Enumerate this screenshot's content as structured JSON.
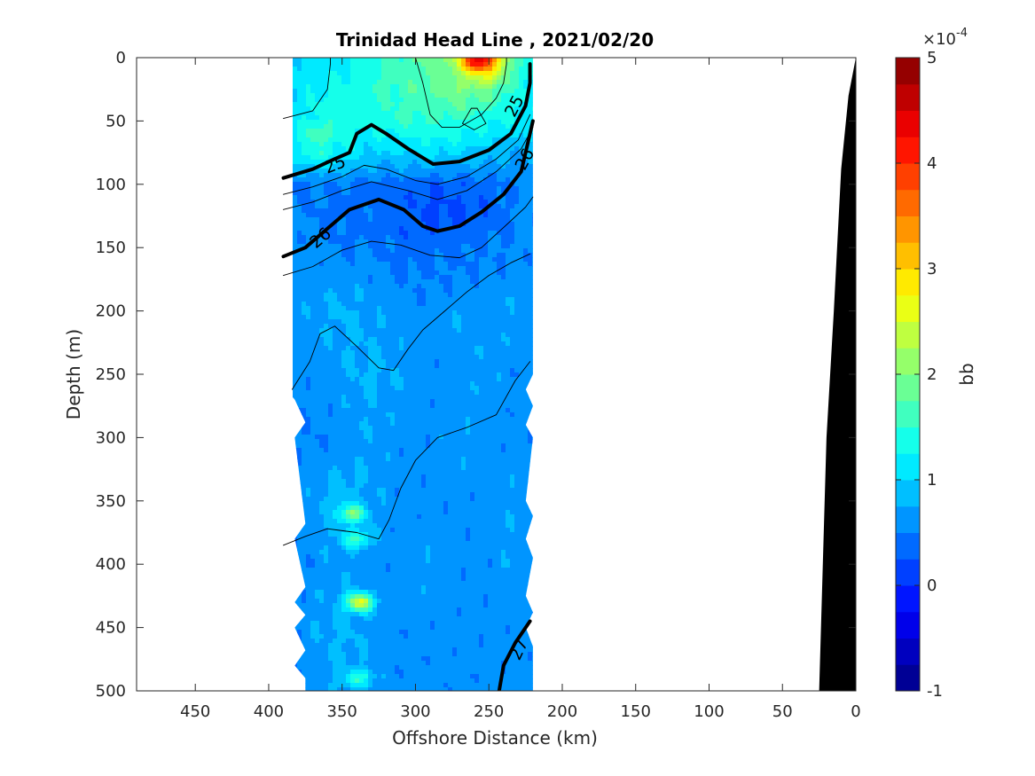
{
  "chart_data": {
    "type": "heatmap",
    "title": "Trinidad Head Line , 2021/02/20",
    "xlabel": "Offshore Distance (km)",
    "ylabel": "Depth (m)",
    "xlim": [
      490,
      0
    ],
    "ylim": [
      500,
      0
    ],
    "x_direction": "reversed",
    "y_direction": "depth-down",
    "x_ticks": [
      450,
      400,
      350,
      300,
      250,
      200,
      150,
      100,
      50,
      0
    ],
    "y_ticks": [
      0,
      50,
      100,
      150,
      200,
      250,
      300,
      350,
      400,
      450,
      500
    ],
    "colorbar": {
      "label": "bb",
      "exponent_label": "×10",
      "exponent_power": "-4",
      "range": [
        -1,
        5
      ],
      "ticks": [
        -1,
        0,
        1,
        2,
        3,
        4,
        5
      ],
      "colormap": "jet"
    },
    "data_extent": {
      "x_range_km": [
        390,
        220
      ],
      "depth_range_m": [
        0,
        500
      ]
    },
    "field_bb_e4": {
      "x": [
        390,
        370,
        350,
        330,
        310,
        290,
        270,
        250,
        235,
        220
      ],
      "depth": [
        0,
        25,
        50,
        75,
        100,
        125,
        150,
        200,
        250,
        300,
        350,
        400,
        450,
        500
      ],
      "values": [
        [
          1.0,
          1.1,
          1.2,
          1.4,
          1.6,
          1.8,
          2.3,
          3.6,
          1.9,
          1.3
        ],
        [
          1.0,
          1.2,
          1.3,
          1.5,
          1.6,
          1.8,
          2.0,
          1.9,
          1.5,
          1.2
        ],
        [
          1.1,
          1.3,
          1.4,
          1.3,
          1.5,
          1.5,
          1.5,
          1.3,
          1.2,
          1.1
        ],
        [
          0.9,
          1.5,
          1.2,
          1.0,
          1.0,
          1.1,
          1.0,
          0.9,
          0.8,
          0.8
        ],
        [
          0.4,
          0.5,
          0.5,
          0.4,
          0.4,
          0.3,
          0.3,
          0.4,
          0.5,
          0.6
        ],
        [
          0.6,
          0.5,
          0.4,
          0.4,
          0.3,
          0.2,
          0.2,
          0.3,
          0.5,
          0.6
        ],
        [
          0.6,
          0.6,
          0.5,
          0.5,
          0.4,
          0.4,
          0.4,
          0.5,
          0.5,
          0.6
        ],
        [
          0.6,
          0.7,
          0.8,
          0.7,
          0.6,
          0.6,
          0.7,
          0.6,
          0.7,
          0.6
        ],
        [
          0.6,
          0.6,
          0.7,
          0.8,
          0.7,
          0.6,
          0.6,
          0.7,
          0.6,
          0.6
        ],
        [
          0.6,
          0.5,
          0.6,
          0.7,
          0.6,
          0.6,
          0.7,
          0.6,
          0.6,
          0.6
        ],
        [
          0.5,
          0.7,
          0.9,
          0.7,
          0.6,
          0.6,
          0.6,
          0.6,
          0.7,
          0.6
        ],
        [
          0.4,
          0.6,
          0.7,
          0.6,
          0.6,
          0.7,
          0.6,
          0.6,
          0.7,
          0.6
        ],
        [
          0.5,
          0.7,
          0.8,
          0.7,
          0.6,
          0.6,
          0.6,
          0.6,
          0.6,
          0.6
        ],
        [
          0.4,
          0.6,
          0.8,
          0.6,
          0.6,
          0.6,
          0.6,
          0.6,
          0.6,
          0.6
        ]
      ]
    },
    "hotspots": [
      {
        "x": 258,
        "depth": 3,
        "value": 4.5
      },
      {
        "x": 338,
        "depth": 430,
        "value": 2.6
      },
      {
        "x": 343,
        "depth": 360,
        "value": 2.0
      },
      {
        "x": 340,
        "depth": 380,
        "value": 1.6
      },
      {
        "x": 338,
        "depth": 490,
        "value": 1.5
      },
      {
        "x": 365,
        "depth": 60,
        "value": 1.7
      }
    ],
    "contours": [
      {
        "level": 25,
        "bold": true,
        "label": "25",
        "points": [
          [
            390,
            95
          ],
          [
            370,
            88
          ],
          [
            355,
            80
          ],
          [
            345,
            75
          ],
          [
            340,
            60
          ],
          [
            330,
            53
          ],
          [
            320,
            60
          ],
          [
            305,
            72
          ],
          [
            288,
            84
          ],
          [
            270,
            82
          ],
          [
            250,
            73
          ],
          [
            235,
            60
          ],
          [
            225,
            38
          ],
          [
            222,
            20
          ],
          [
            222,
            5
          ]
        ]
      },
      {
        "level": 26,
        "bold": true,
        "label": "26",
        "points": [
          [
            390,
            157
          ],
          [
            375,
            150
          ],
          [
            360,
            135
          ],
          [
            345,
            120
          ],
          [
            325,
            112
          ],
          [
            308,
            120
          ],
          [
            295,
            133
          ],
          [
            285,
            137
          ],
          [
            270,
            133
          ],
          [
            255,
            122
          ],
          [
            240,
            108
          ],
          [
            228,
            90
          ],
          [
            220,
            50
          ]
        ]
      },
      {
        "level": 27,
        "bold": true,
        "label": "27",
        "points": [
          [
            243,
            500
          ],
          [
            240,
            480
          ],
          [
            232,
            462
          ],
          [
            222,
            445
          ]
        ]
      },
      {
        "level": 25.2,
        "bold": false,
        "label": "",
        "points": [
          [
            390,
            108
          ],
          [
            370,
            102
          ],
          [
            350,
            94
          ],
          [
            335,
            85
          ],
          [
            320,
            88
          ],
          [
            300,
            97
          ],
          [
            285,
            100
          ],
          [
            265,
            94
          ],
          [
            245,
            80
          ],
          [
            230,
            65
          ],
          [
            222,
            45
          ]
        ]
      },
      {
        "level": 25.4,
        "bold": false,
        "label": "",
        "points": [
          [
            390,
            120
          ],
          [
            370,
            114
          ],
          [
            350,
            105
          ],
          [
            330,
            98
          ],
          [
            305,
            105
          ],
          [
            285,
            112
          ],
          [
            265,
            105
          ],
          [
            245,
            90
          ],
          [
            228,
            72
          ],
          [
            220,
            55
          ]
        ]
      },
      {
        "level": 26.2,
        "bold": false,
        "label": "",
        "points": [
          [
            390,
            172
          ],
          [
            370,
            165
          ],
          [
            350,
            152
          ],
          [
            330,
            145
          ],
          [
            310,
            148
          ],
          [
            290,
            156
          ],
          [
            270,
            158
          ],
          [
            255,
            150
          ],
          [
            238,
            132
          ],
          [
            225,
            118
          ],
          [
            220,
            110
          ]
        ]
      },
      {
        "level": 26.4,
        "bold": false,
        "label": "",
        "points": [
          [
            384,
            262
          ],
          [
            372,
            240
          ],
          [
            365,
            218
          ],
          [
            355,
            212
          ],
          [
            340,
            228
          ],
          [
            325,
            245
          ],
          [
            315,
            247
          ],
          [
            305,
            230
          ],
          [
            295,
            215
          ],
          [
            280,
            200
          ],
          [
            265,
            185
          ],
          [
            250,
            172
          ],
          [
            235,
            162
          ],
          [
            222,
            155
          ]
        ]
      },
      {
        "level": 26.6,
        "bold": false,
        "label": "",
        "points": [
          [
            390,
            385
          ],
          [
            375,
            378
          ],
          [
            360,
            372
          ],
          [
            340,
            375
          ],
          [
            325,
            380
          ],
          [
            318,
            365
          ],
          [
            310,
            340
          ],
          [
            300,
            318
          ],
          [
            285,
            300
          ],
          [
            265,
            292
          ],
          [
            245,
            282
          ],
          [
            232,
            255
          ],
          [
            222,
            240
          ]
        ]
      },
      {
        "level": 24.8,
        "bold": false,
        "label": "",
        "points": [
          [
            390,
            48
          ],
          [
            370,
            42
          ],
          [
            360,
            25
          ],
          [
            358,
            5
          ],
          [
            358,
            0
          ]
        ]
      },
      {
        "level": 24.6,
        "bold": false,
        "label": "",
        "points": [
          [
            300,
            0
          ],
          [
            295,
            20
          ],
          [
            290,
            45
          ],
          [
            282,
            55
          ],
          [
            270,
            55
          ],
          [
            255,
            45
          ],
          [
            245,
            32
          ],
          [
            240,
            20
          ],
          [
            238,
            5
          ],
          [
            238,
            0
          ]
        ]
      },
      {
        "level": 24.4,
        "bold": false,
        "label": "",
        "points": [
          [
            258,
            40
          ],
          [
            252,
            52
          ],
          [
            260,
            57
          ],
          [
            268,
            52
          ],
          [
            262,
            40
          ],
          [
            258,
            40
          ]
        ]
      }
    ],
    "bathymetry": {
      "label": "",
      "color": "#000000",
      "points": [
        [
          0,
          0
        ],
        [
          5,
          30
        ],
        [
          10,
          88
        ],
        [
          15,
          200
        ],
        [
          20,
          300
        ],
        [
          25,
          500
        ],
        [
          0,
          500
        ]
      ]
    }
  }
}
